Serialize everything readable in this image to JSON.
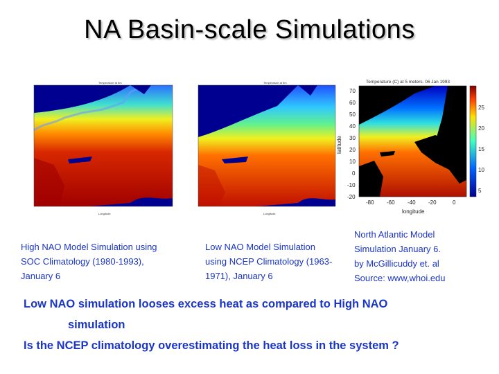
{
  "slide": {
    "title": "NA Basin-scale Simulations",
    "captions": {
      "left_lines": [
        "High NAO Model Simulation using",
        "SOC Climatology (1980-1993),",
        "January 6"
      ],
      "middle_lines": [
        "Low NAO Model Simulation",
        "using NCEP Climatology (1963-",
        "1971), January 6"
      ],
      "right_lines": [
        "North Atlantic Model",
        "Simulation January 6.",
        "by McGillicuddy et. al",
        "Source: www,whoi.edu"
      ]
    },
    "statement_line1": "Low NAO simulation looses excess heat as compared to High NAO",
    "statement_line2": "simulation",
    "question": "Is the NCEP climatology overestimating the heat loss in the system ?"
  },
  "figure": {
    "right_map": {
      "title": "Temperature (C) at 5 meters. 06 Jan 1993",
      "ylabel": "latitude",
      "xlabel": "longitude",
      "y_ticks": [
        "70",
        "60",
        "50",
        "40",
        "30",
        "20",
        "10",
        "0",
        "-10",
        "-20"
      ],
      "x_ticks": [
        "-80",
        "-60",
        "-40",
        "-20",
        "0"
      ],
      "colorbar_ticks": [
        "25",
        "20",
        "15",
        "10",
        "5"
      ]
    }
  },
  "colors": {
    "caption_text": "#1a35c8",
    "land": "#000090"
  }
}
